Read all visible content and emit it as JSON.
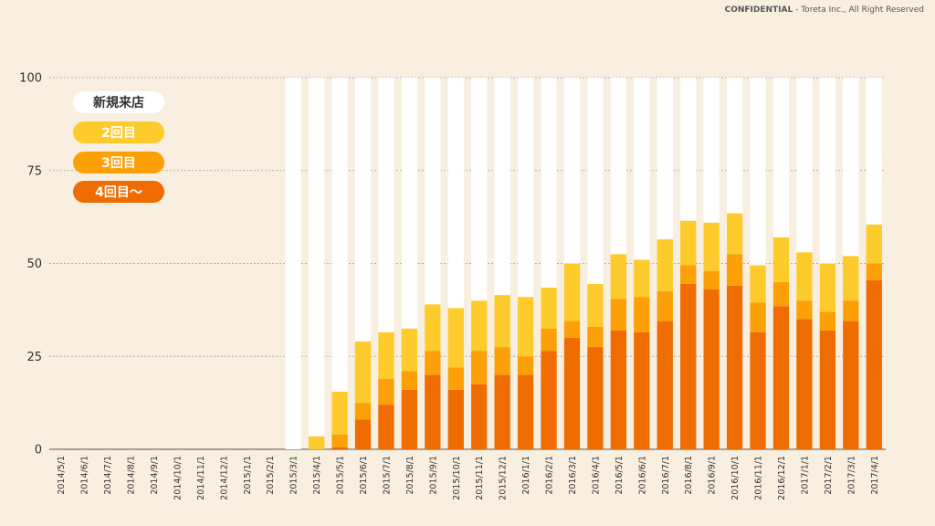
{
  "footer": {
    "label": "CONFIDENTIAL",
    "separator": " - ",
    "text": "Toreta Inc., All Right Reserved"
  },
  "chart_data": {
    "type": "bar",
    "stacked": true,
    "title": "",
    "xlabel": "",
    "ylabel": "",
    "ylim": [
      0,
      100
    ],
    "yticks": [
      0,
      25,
      50,
      75,
      100
    ],
    "grid": true,
    "legend_position": "top-left",
    "categories": [
      "2014/5/1",
      "2014/6/1",
      "2014/7/1",
      "2014/8/1",
      "2014/9/1",
      "2014/10/1",
      "2014/11/1",
      "2014/12/1",
      "2015/1/1",
      "2015/2/1",
      "2015/3/1",
      "2015/4/1",
      "2015/5/1",
      "2015/6/1",
      "2015/7/1",
      "2015/8/1",
      "2015/9/1",
      "2015/10/1",
      "2015/11/1",
      "2015/12/1",
      "2016/1/1",
      "2016/2/1",
      "2016/3/1",
      "2016/4/1",
      "2016/5/1",
      "2016/6/1",
      "2016/7/1",
      "2016/8/1",
      "2016/9/1",
      "2016/10/1",
      "2016/11/1",
      "2016/12/1",
      "2017/1/1",
      "2017/2/1",
      "2017/3/1",
      "2017/4/1"
    ],
    "series": [
      {
        "name": "4回目〜",
        "color": "#ef6d00",
        "values": [
          0,
          0,
          0,
          0,
          0,
          0,
          0,
          0,
          0,
          0,
          0,
          0,
          0.5,
          8,
          12,
          16,
          20,
          16,
          17.5,
          20,
          20,
          26.5,
          30,
          27.5,
          32,
          31.5,
          34.5,
          44.5,
          43,
          44,
          31.5,
          38.5,
          35,
          32,
          34.5,
          45.5
        ]
      },
      {
        "name": "3回目",
        "color": "#fd9f06",
        "values": [
          0,
          0,
          0,
          0,
          0,
          0,
          0,
          0,
          0,
          0,
          0,
          0,
          3.5,
          4.5,
          7,
          5,
          6.5,
          6,
          9,
          7.5,
          5,
          6,
          4.5,
          5.5,
          8.5,
          9.5,
          8,
          5,
          5,
          8.5,
          8,
          6.5,
          5,
          5,
          5.5,
          4.5
        ]
      },
      {
        "name": "2回目",
        "color": "#fecb2c",
        "values": [
          0,
          0,
          0,
          0,
          0,
          0,
          0,
          0,
          0,
          0,
          0,
          3.5,
          11.5,
          16.5,
          12.5,
          11.5,
          12.5,
          16,
          13.5,
          14,
          16,
          11,
          15.5,
          11.5,
          12,
          10,
          14,
          12,
          13,
          11,
          10,
          12,
          13,
          13,
          12,
          10.5
        ]
      },
      {
        "name": "新規来店",
        "color": "#ffffff",
        "values": [
          0,
          0,
          0,
          0,
          0,
          0,
          0,
          0,
          0,
          0,
          100,
          96.5,
          84.5,
          71,
          68.5,
          67.5,
          61,
          62,
          60,
          58.5,
          59,
          56.5,
          50,
          55.5,
          47.5,
          49,
          43.5,
          38.5,
          39,
          36.5,
          50.5,
          43,
          47,
          50,
          48,
          39.5
        ]
      }
    ]
  },
  "legend_items": [
    {
      "label": "新規来店",
      "bg": "#ffffff",
      "fg": "#333333"
    },
    {
      "label": "2回目",
      "bg": "#fecb2c",
      "fg": "#ffffff"
    },
    {
      "label": "3回目",
      "bg": "#fd9f06",
      "fg": "#ffffff"
    },
    {
      "label": "4回目〜",
      "bg": "#ef6d00",
      "fg": "#ffffff"
    }
  ]
}
